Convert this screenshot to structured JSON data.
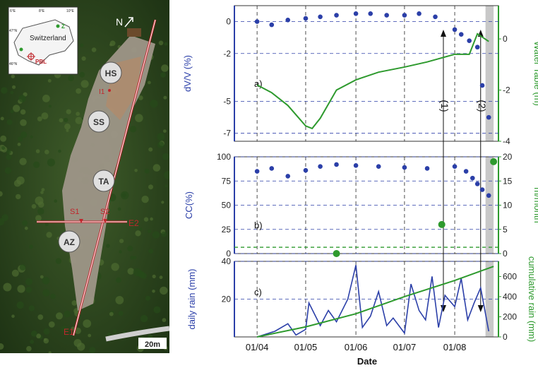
{
  "photo": {
    "north_label": "N",
    "inset": {
      "lon_labels": [
        "6°E",
        "8°E",
        "10°E"
      ],
      "lat_labels": [
        "47°N",
        "46°N"
      ],
      "country": "Switzerland",
      "site_labels": [
        "Z",
        "PBL"
      ]
    },
    "zones": [
      "HS",
      "SS",
      "TA",
      "AZ"
    ],
    "point_labels": [
      "I1",
      "S1",
      "S2",
      "E2",
      "E1"
    ],
    "scale_label": "20m"
  },
  "figure": {
    "xlabel": "Date",
    "x_ticks": [
      "01/04",
      "01/05",
      "01/06",
      "01/07",
      "01/08"
    ],
    "event_labels": [
      "(1)",
      "(2)"
    ],
    "colors": {
      "blue": "#2b3fa8",
      "green": "#2e9a2e",
      "gray_band": "#c8c8c8"
    }
  },
  "chart_data": [
    {
      "type": "scatter",
      "panel_label": "a)",
      "ylabel": "dV/V (%)",
      "y_ticks": [
        "0",
        "-2",
        "-5",
        "-7"
      ],
      "ylim": [
        -7.5,
        1
      ],
      "series": [
        {
          "name": "",
          "y_axis": "left",
          "color": "#2b3fa8",
          "x": [
            "04-01",
            "04-10",
            "04-20",
            "05-01",
            "05-10",
            "05-20",
            "06-01",
            "06-10",
            "06-20",
            "07-01",
            "07-10",
            "07-20",
            "08-01",
            "08-05",
            "08-10",
            "08-15",
            "08-18",
            "08-22"
          ],
          "values": [
            0,
            -0.2,
            0.1,
            0.2,
            0.3,
            0.4,
            0.5,
            0.5,
            0.4,
            0.4,
            0.5,
            0.3,
            -0.5,
            -0.8,
            -1.2,
            -1.6,
            -4,
            -6
          ]
        }
      ],
      "y2label": "Water Table (m)",
      "y2_ticks": [
        "0",
        "-2",
        "-4"
      ],
      "y2lim": [
        -4,
        1.3
      ],
      "series2": [
        {
          "name": "",
          "y_axis": "right",
          "color": "#2e9a2e",
          "x": [
            "04-01",
            "04-10",
            "04-20",
            "05-01",
            "05-05",
            "05-10",
            "05-20",
            "06-01",
            "06-15",
            "07-01",
            "07-15",
            "08-01",
            "08-10",
            "08-15",
            "08-22"
          ],
          "values": [
            -1.8,
            -2.1,
            -2.6,
            -3.4,
            -3.5,
            -3.1,
            -2.0,
            -1.6,
            -1.3,
            -1.1,
            -0.9,
            -0.6,
            -0.6,
            0.2,
            -0.1
          ]
        }
      ]
    },
    {
      "type": "scatter",
      "panel_label": "b)",
      "ylabel": "CC(%)",
      "y_ticks": [
        "0",
        "25",
        "50",
        "75",
        "100"
      ],
      "ylim": [
        0,
        100
      ],
      "series": [
        {
          "name": "",
          "y_axis": "left",
          "color": "#2b3fa8",
          "x": [
            "04-01",
            "04-10",
            "04-20",
            "05-01",
            "05-10",
            "05-20",
            "06-01",
            "06-15",
            "07-01",
            "07-15",
            "08-01",
            "08-08",
            "08-12",
            "08-15",
            "08-18",
            "08-22"
          ],
          "values": [
            85,
            88,
            80,
            86,
            90,
            92,
            91,
            90,
            89,
            88,
            90,
            85,
            78,
            72,
            66,
            60
          ]
        }
      ],
      "y2label": "m/month",
      "y2_ticks": [
        "0",
        "5",
        "10",
        "15",
        "20"
      ],
      "y2lim": [
        0,
        20
      ],
      "series2": [
        {
          "name": "",
          "y_axis": "right",
          "color": "#2e9a2e",
          "x": [
            "05-20",
            "07-24",
            "08-25"
          ],
          "values": [
            0,
            6,
            19
          ]
        }
      ]
    },
    {
      "type": "line",
      "panel_label": "c)",
      "ylabel": "daily rain (mm)",
      "y_ticks": [
        "20",
        "40"
      ],
      "ylim": [
        0,
        40
      ],
      "series": [
        {
          "name": "",
          "y_axis": "left",
          "color": "#2b3fa8",
          "x": [
            "04-01",
            "04-12",
            "04-20",
            "04-25",
            "05-01",
            "05-03",
            "05-10",
            "05-15",
            "05-20",
            "05-27",
            "06-01",
            "06-05",
            "06-10",
            "06-15",
            "06-20",
            "06-24",
            "07-01",
            "07-05",
            "07-10",
            "07-14",
            "07-18",
            "07-22",
            "07-26",
            "08-01",
            "08-05",
            "08-09",
            "08-13",
            "08-17",
            "08-22"
          ],
          "values": [
            0,
            3,
            7,
            1,
            4,
            18,
            6,
            14,
            8,
            20,
            38,
            5,
            11,
            24,
            6,
            10,
            2,
            28,
            14,
            9,
            32,
            5,
            22,
            16,
            31,
            9,
            18,
            26,
            3
          ]
        }
      ],
      "y2label": "cumulative rain (mm)",
      "y2_ticks": [
        "0",
        "200",
        "400",
        "600"
      ],
      "y2lim": [
        0,
        750
      ],
      "series2": [
        {
          "name": "",
          "y_axis": "right",
          "color": "#2e9a2e",
          "x": [
            "04-01",
            "05-01",
            "06-01",
            "07-01",
            "08-01",
            "08-25"
          ],
          "values": [
            0,
            100,
            230,
            400,
            560,
            700
          ]
        }
      ]
    }
  ]
}
